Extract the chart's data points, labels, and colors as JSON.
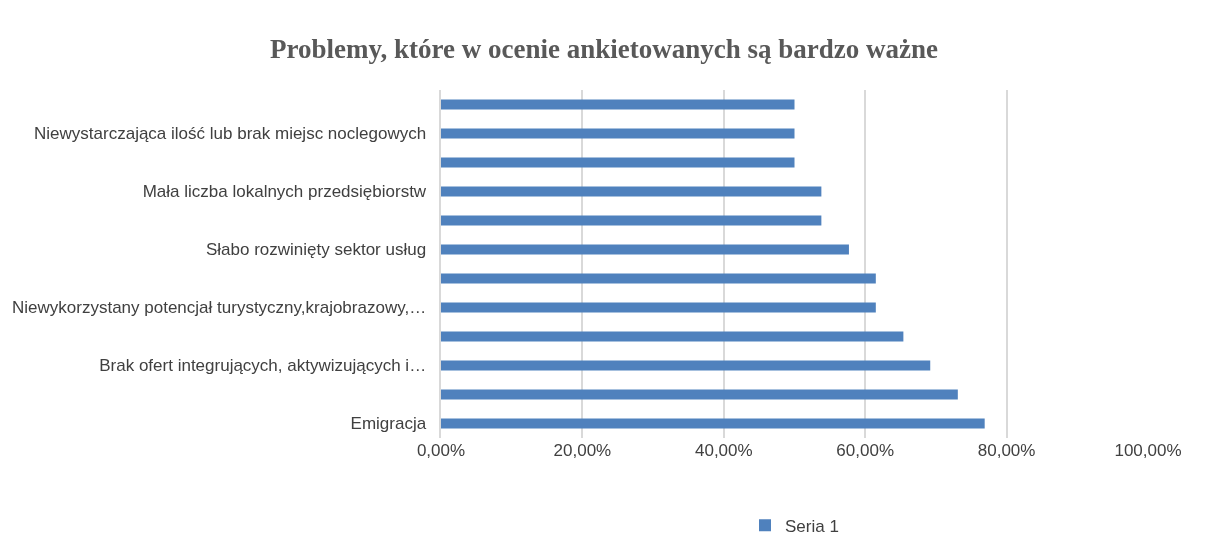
{
  "chart_data": {
    "type": "bar",
    "orientation": "horizontal",
    "title": "Problemy, które w ocenie ankietowanych są bardzo ważne",
    "categories": [
      null,
      "Niewystarczająca ilość lub brak miejsc noclegowych",
      null,
      "Mała liczba lokalnych przedsiębiorstw",
      null,
      "Słabo rozwinięty sektor usług",
      null,
      "Niewykorzystany potencjał turystyczny,krajobrazowy,…",
      null,
      "Brak ofert integrujących, aktywizujących i…",
      null,
      "Emigracja"
    ],
    "series": [
      {
        "name": "Seria 1",
        "color": "#4f81bd",
        "values": [
          50,
          50,
          50,
          53.8,
          53.8,
          57.7,
          61.5,
          61.5,
          65.4,
          69.2,
          73.1,
          76.9
        ]
      }
    ],
    "xlim": [
      0,
      100
    ],
    "xticks": [
      {
        "value": 0,
        "label": "0,00%"
      },
      {
        "value": 20,
        "label": "20,00%"
      },
      {
        "value": 40,
        "label": "40,00%"
      },
      {
        "value": 60,
        "label": "60,00%"
      },
      {
        "value": 80,
        "label": "80,00%"
      },
      {
        "value": 100,
        "label": "100,00%"
      }
    ],
    "grid": "x",
    "legend": "bottom"
  }
}
